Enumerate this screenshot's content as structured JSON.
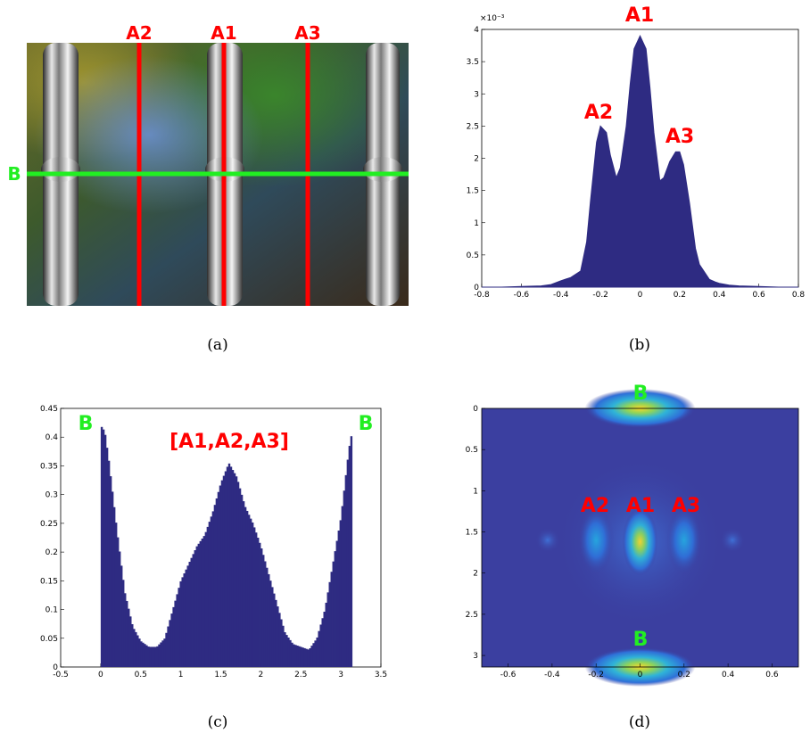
{
  "colors": {
    "fill": "#2e2b82",
    "red": "#ff0000",
    "green": "#22ee22",
    "heat_bg": "#3b3fa0"
  },
  "panel_a": {
    "caption": "(a)",
    "labels": {
      "a2": "A2",
      "a1": "A1",
      "a3": "A3",
      "b": "B"
    }
  },
  "panel_b": {
    "caption": "(b)",
    "exponent": "×10⁻³",
    "annotations": {
      "a1": "A1",
      "a2": "A2",
      "a3": "A3"
    }
  },
  "panel_c": {
    "caption": "(c)",
    "annotations": {
      "b_left": "B",
      "b_right": "B",
      "center": "[A1,A2,A3]"
    }
  },
  "panel_d": {
    "caption": "(d)",
    "annotations": {
      "b_top": "B",
      "a2": "A2",
      "a1": "A1",
      "a3": "A3",
      "b_bottom": "B"
    }
  },
  "chart_data": [
    {
      "panel": "b",
      "type": "area",
      "xlim": [
        -0.8,
        0.8
      ],
      "ylim": [
        0,
        4
      ],
      "y_scale_exponent": -3,
      "x_ticks": [
        "-0.8",
        "-0.6",
        "-0.4",
        "-0.2",
        "0",
        "0.2",
        "0.4",
        "0.6",
        "0.8"
      ],
      "y_ticks": [
        "0",
        "0.5",
        "1",
        "1.5",
        "2",
        "2.5",
        "3",
        "3.5",
        "4"
      ],
      "x": [
        -0.8,
        -0.7,
        -0.6,
        -0.5,
        -0.45,
        -0.4,
        -0.35,
        -0.3,
        -0.27,
        -0.25,
        -0.22,
        -0.2,
        -0.17,
        -0.15,
        -0.12,
        -0.1,
        -0.07,
        -0.05,
        -0.03,
        0,
        0.03,
        0.05,
        0.07,
        0.1,
        0.12,
        0.15,
        0.18,
        0.2,
        0.22,
        0.25,
        0.28,
        0.3,
        0.35,
        0.38,
        0.4,
        0.45,
        0.5,
        0.6,
        0.7,
        0.8
      ],
      "y": [
        0,
        0,
        0.01,
        0.02,
        0.04,
        0.1,
        0.15,
        0.25,
        0.7,
        1.35,
        2.25,
        2.5,
        2.4,
        2.05,
        1.7,
        1.85,
        2.5,
        3.15,
        3.7,
        3.9,
        3.7,
        3.1,
        2.4,
        1.65,
        1.7,
        1.95,
        2.1,
        2.1,
        1.9,
        1.3,
        0.6,
        0.35,
        0.12,
        0.08,
        0.06,
        0.03,
        0.02,
        0.01,
        0,
        0
      ]
    },
    {
      "panel": "c",
      "type": "bar",
      "xlim": [
        -0.5,
        3.5
      ],
      "ylim": [
        0,
        0.45
      ],
      "x_ticks": [
        "-0.5",
        "0",
        "0.5",
        "1",
        "1.5",
        "2",
        "2.5",
        "3",
        "3.5"
      ],
      "y_ticks": [
        "0",
        "0.05",
        "0.1",
        "0.15",
        "0.2",
        "0.25",
        "0.3",
        "0.35",
        "0.4",
        "0.45"
      ],
      "x": [
        0,
        0.05,
        0.1,
        0.2,
        0.3,
        0.4,
        0.5,
        0.6,
        0.7,
        0.8,
        0.9,
        1.0,
        1.1,
        1.2,
        1.3,
        1.4,
        1.5,
        1.6,
        1.7,
        1.8,
        1.9,
        2.0,
        2.1,
        2.2,
        2.3,
        2.4,
        2.5,
        2.6,
        2.7,
        2.8,
        2.9,
        3.0,
        3.1,
        3.14
      ],
      "y": [
        0.42,
        0.41,
        0.36,
        0.24,
        0.13,
        0.07,
        0.045,
        0.035,
        0.035,
        0.05,
        0.1,
        0.15,
        0.18,
        0.21,
        0.23,
        0.27,
        0.32,
        0.355,
        0.33,
        0.28,
        0.25,
        0.21,
        0.16,
        0.11,
        0.06,
        0.04,
        0.035,
        0.03,
        0.05,
        0.1,
        0.18,
        0.26,
        0.38,
        0.41
      ]
    },
    {
      "panel": "d",
      "type": "heatmap",
      "xlim": [
        -0.72,
        0.72
      ],
      "ylim": [
        3.14,
        0
      ],
      "x_ticks": [
        "-0.6",
        "-0.4",
        "-0.2",
        "0",
        "0.2",
        "0.4",
        "0.6"
      ],
      "y_ticks": [
        "0",
        "0.5",
        "1",
        "1.5",
        "2",
        "2.5",
        "3"
      ],
      "peaks": [
        {
          "x": 0,
          "y": 0.0,
          "intensity": 1.0
        },
        {
          "x": 0,
          "y": 3.14,
          "intensity": 1.0
        },
        {
          "x": 0,
          "y": 1.62,
          "intensity": 0.9
        },
        {
          "x": -0.2,
          "y": 1.6,
          "intensity": 0.7
        },
        {
          "x": 0.2,
          "y": 1.6,
          "intensity": 0.6
        }
      ]
    }
  ]
}
